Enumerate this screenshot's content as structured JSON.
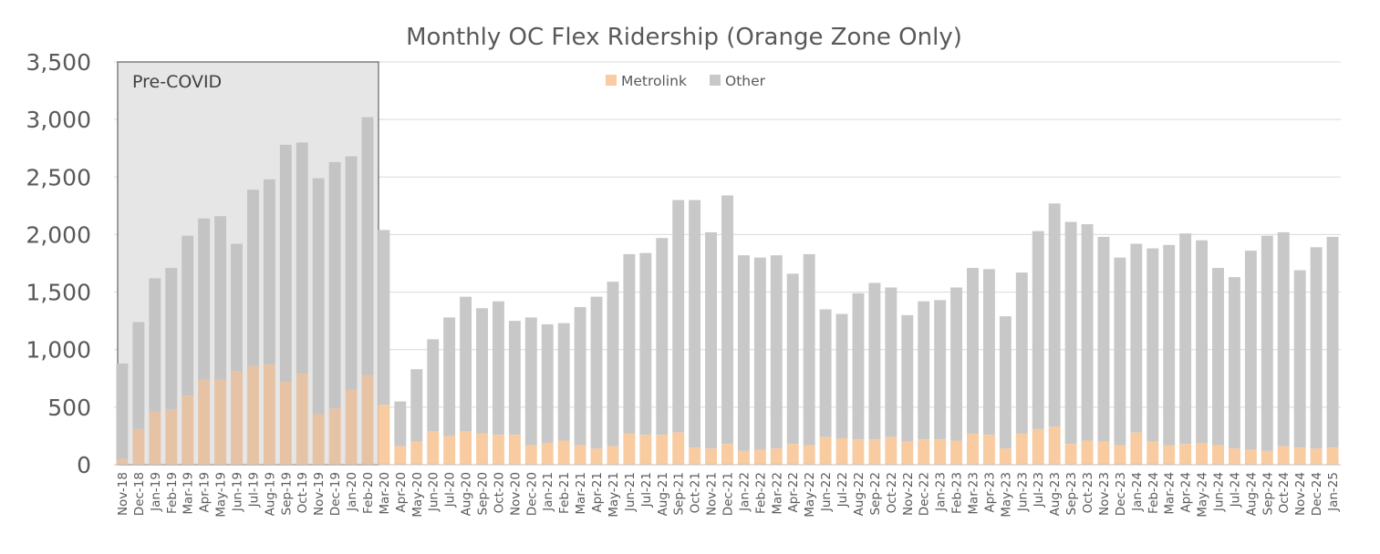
{
  "chart_data": {
    "type": "bar",
    "stacked": true,
    "title": "Monthly OC Flex Ridership (Orange Zone Only)",
    "xlabel": "",
    "ylabel": "",
    "ylim": [
      0,
      3500
    ],
    "yticks": [
      "0",
      "500",
      "1,000",
      "1,500",
      "2,000",
      "2,500",
      "3,000",
      "3,500"
    ],
    "grid": true,
    "legend_position": "top-center",
    "categories": [
      "Nov-18",
      "Dec-18",
      "Jan-19",
      "Feb-19",
      "Mar-19",
      "Apr-19",
      "May-19",
      "Jun-19",
      "Jul-19",
      "Aug-19",
      "Sep-19",
      "Oct-19",
      "Nov-19",
      "Dec-19",
      "Jan-20",
      "Feb-20",
      "Mar-20",
      "Apr-20",
      "May-20",
      "Jun-20",
      "Jul-20",
      "Aug-20",
      "Sep-20",
      "Oct-20",
      "Nov-20",
      "Dec-20",
      "Jan-21",
      "Feb-21",
      "Mar-21",
      "Apr-21",
      "May-21",
      "Jun-21",
      "Jul-21",
      "Aug-21",
      "Sep-21",
      "Oct-21",
      "Nov-21",
      "Dec-21",
      "Jan-22",
      "Feb-22",
      "Mar-22",
      "Apr-22",
      "May-22",
      "Jun-22",
      "Jul-22",
      "Aug-22",
      "Sep-22",
      "Oct-22",
      "Nov-22",
      "Dec-22",
      "Jan-23",
      "Feb-23",
      "Mar-23",
      "Apr-23",
      "May-23",
      "Jun-23",
      "Jul-23",
      "Aug-23",
      "Sep-23",
      "Oct-23",
      "Nov-23",
      "Dec-23",
      "Jan-24",
      "Feb-24",
      "Mar-24",
      "Apr-24",
      "May-24",
      "Jun-24",
      "Jul-24",
      "Aug-24",
      "Sep-24",
      "Oct-24",
      "Nov-24",
      "Dec-24",
      "Jan-25"
    ],
    "series": [
      {
        "name": "Metrolink",
        "color": "#f8cba0",
        "values": [
          50,
          310,
          460,
          480,
          600,
          740,
          740,
          810,
          860,
          870,
          720,
          790,
          440,
          490,
          650,
          780,
          520,
          160,
          200,
          290,
          250,
          290,
          270,
          260,
          260,
          170,
          190,
          210,
          170,
          140,
          160,
          270,
          260,
          260,
          280,
          150,
          140,
          180,
          120,
          130,
          140,
          180,
          170,
          240,
          230,
          220,
          220,
          240,
          200,
          220,
          220,
          210,
          270,
          260,
          140,
          270,
          310,
          330,
          180,
          210,
          200,
          170,
          280,
          200,
          170,
          180,
          190,
          170,
          140,
          130,
          120,
          160,
          150,
          140,
          150
        ]
      },
      {
        "name": "Other",
        "color": "#c8c8c8",
        "values": [
          830,
          930,
          1160,
          1230,
          1390,
          1400,
          1420,
          1110,
          1530,
          1610,
          2060,
          2010,
          2050,
          2140,
          2030,
          2240,
          1520,
          390,
          630,
          800,
          1030,
          1170,
          1090,
          1160,
          990,
          1110,
          1030,
          1020,
          1200,
          1320,
          1430,
          1560,
          1580,
          1710,
          2020,
          2150,
          1880,
          2160,
          1700,
          1670,
          1680,
          1480,
          1660,
          1110,
          1080,
          1270,
          1360,
          1300,
          1100,
          1200,
          1210,
          1330,
          1440,
          1440,
          1150,
          1400,
          1720,
          1940,
          1930,
          1880,
          1780,
          1630,
          1640,
          1680,
          1740,
          1830,
          1760,
          1540,
          1490,
          1730,
          1870,
          1860,
          1540,
          1750,
          1830
        ]
      }
    ],
    "annotations": [
      {
        "text": "Pre-COVID",
        "span_categories": [
          "Nov-18",
          "Feb-20"
        ]
      }
    ]
  }
}
